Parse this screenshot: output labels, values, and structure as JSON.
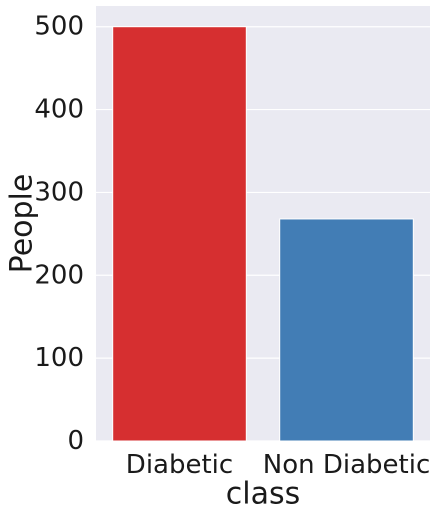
{
  "chart_data": {
    "type": "bar",
    "categories": [
      "Diabetic",
      "Non Diabetic"
    ],
    "values": [
      500,
      268
    ],
    "xlabel": "class",
    "ylabel": "People",
    "ylim": [
      0,
      525
    ],
    "yticks": [
      0,
      100,
      200,
      300,
      400,
      500
    ],
    "grid": true,
    "colors": {
      "background": "#eaeaf2",
      "grid": "#ffffff",
      "bars": [
        "#d62f30",
        "#427db5"
      ]
    }
  }
}
